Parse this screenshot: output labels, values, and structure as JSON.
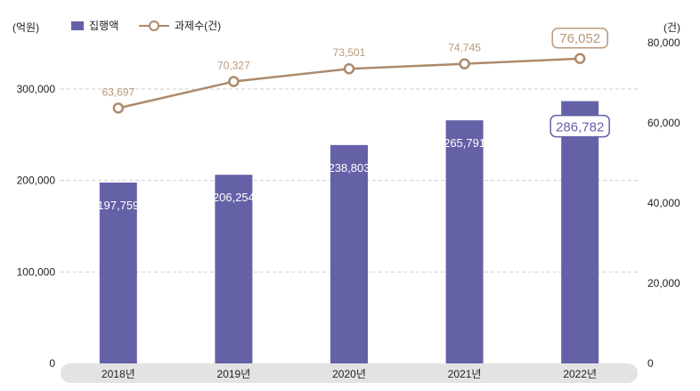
{
  "units": {
    "left": "(억원)",
    "right": "(건)"
  },
  "legend": {
    "bar_label": "집행액",
    "line_label": "과제수(건)"
  },
  "colors": {
    "bar": "#6561a7",
    "line": "#ad8a6c",
    "line_label": "#b8987a",
    "grid": "#cfcfcf",
    "axis_band": "#e3e3e3"
  },
  "chart_data": {
    "type": "bar+line",
    "categories": [
      "2018년",
      "2019년",
      "2020년",
      "2021년",
      "2022년"
    ],
    "series": [
      {
        "name": "집행액",
        "type": "bar",
        "axis": "left",
        "values": [
          197759,
          206254,
          238803,
          265791,
          286782
        ],
        "labels": [
          "197,759",
          "206,254",
          "238,803",
          "265,791",
          "286,782"
        ]
      },
      {
        "name": "과제수(건)",
        "type": "line",
        "axis": "right",
        "values": [
          63697,
          70327,
          73501,
          74745,
          76052
        ],
        "labels": [
          "63,697",
          "70,327",
          "73,501",
          "74,745",
          "76,052"
        ]
      }
    ],
    "y_left": {
      "range": [
        0,
        300000
      ],
      "ticks": [
        "0",
        "100,000",
        "200,000",
        "300,000"
      ]
    },
    "y_right": {
      "range": [
        0,
        80000
      ],
      "ticks": [
        "0",
        "20,000",
        "40,000",
        "60,000",
        "80,000"
      ]
    },
    "highlight_last": true,
    "grid": true,
    "legend_position": "top-left"
  }
}
